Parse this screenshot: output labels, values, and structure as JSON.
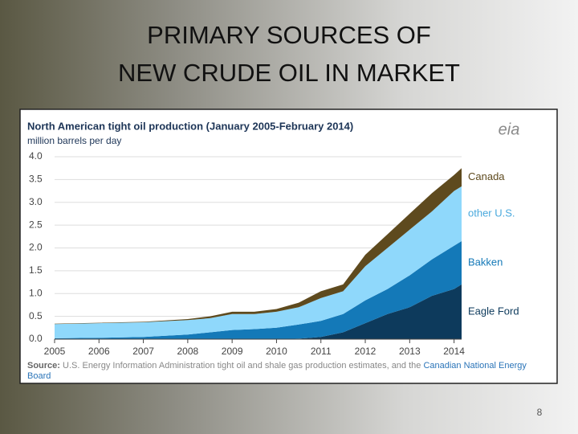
{
  "slide": {
    "title_lines": [
      "PRIMARY SOURCES OF",
      "NEW CRUDE OIL IN MARKET"
    ],
    "page_number": 8
  },
  "chart_data": {
    "type": "stacked_area",
    "title": "North American tight oil production (January 2005-February 2014)",
    "subtitle": "million barrels per day",
    "logo": "eia",
    "x": [
      2005,
      2006,
      2007,
      2008,
      2008.5,
      2009,
      2009.5,
      2010,
      2010.5,
      2011,
      2011.5,
      2012,
      2012.5,
      2013,
      2013.5,
      2014,
      2014.17
    ],
    "series": [
      {
        "name": "Eagle Ford",
        "color": "#0d3a5c",
        "values": [
          0,
          0,
          0,
          0,
          0,
          0,
          0,
          0,
          0.01,
          0.05,
          0.15,
          0.35,
          0.55,
          0.7,
          0.95,
          1.1,
          1.2
        ]
      },
      {
        "name": "Bakken",
        "color": "#1479b8",
        "values": [
          0.02,
          0.03,
          0.05,
          0.1,
          0.15,
          0.2,
          0.22,
          0.25,
          0.31,
          0.35,
          0.4,
          0.5,
          0.55,
          0.7,
          0.8,
          0.95,
          0.95
        ]
      },
      {
        "name": "other U.S.",
        "color": "#8fd8fb",
        "values": [
          0.31,
          0.32,
          0.32,
          0.32,
          0.31,
          0.35,
          0.33,
          0.35,
          0.38,
          0.5,
          0.5,
          0.75,
          0.9,
          1.0,
          1.05,
          1.2,
          1.2
        ]
      },
      {
        "name": "Canada",
        "color": "#5e4a1e",
        "values": [
          0.01,
          0.01,
          0.01,
          0.02,
          0.04,
          0.05,
          0.05,
          0.06,
          0.1,
          0.15,
          0.15,
          0.25,
          0.3,
          0.35,
          0.4,
          0.35,
          0.4
        ]
      }
    ],
    "xlim": [
      2005,
      2014.17
    ],
    "xticks": [
      2005,
      2006,
      2007,
      2008,
      2009,
      2010,
      2011,
      2012,
      2013,
      2014
    ],
    "ylim": [
      0,
      4
    ],
    "yticks": [
      {
        "value": 0,
        "label": "0.0"
      },
      0.5,
      {
        "value": 1,
        "label": "1.0"
      },
      1.5,
      {
        "value": 2,
        "label": "2.0"
      },
      2.5,
      {
        "value": 3,
        "label": "3.0"
      },
      3.5,
      {
        "value": 4,
        "label": "4.0"
      }
    ],
    "grid": true,
    "source_prefix": "Source:",
    "source_text": "U.S. Energy Information Administration tight oil and shale gas production estimates, and the",
    "source_link": "Canadian National Energy Board"
  }
}
